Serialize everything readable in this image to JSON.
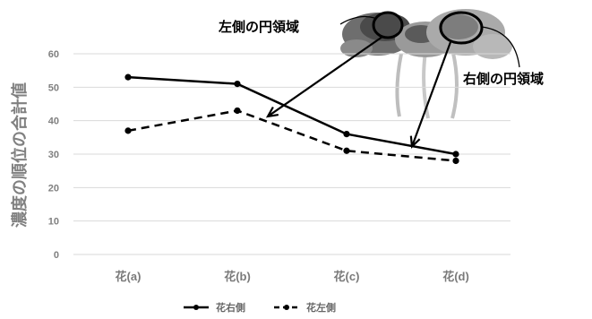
{
  "chart_data": {
    "type": "line",
    "categories": [
      "花(a)",
      "花(b)",
      "花(c)",
      "花(d)"
    ],
    "series": [
      {
        "name": "花右側",
        "values": [
          53,
          51,
          36,
          30
        ],
        "style": "solid",
        "color": "#000000"
      },
      {
        "name": "花左側",
        "values": [
          37,
          43,
          31,
          28
        ],
        "style": "dashed",
        "color": "#000000"
      }
    ],
    "ylabel": "濃度の順位の合計値",
    "ylim": [
      0,
      60
    ],
    "yticks": [
      0,
      10,
      20,
      30,
      40,
      50,
      60
    ],
    "grid": true,
    "legend_position": "bottom",
    "annotations": [
      {
        "text": "左側の円領域",
        "points_to": {
          "category": "花(b)",
          "value": 41
        }
      },
      {
        "text": "右側の円領域",
        "points_to": {
          "category": "花(d)",
          "value": 32
        }
      }
    ]
  },
  "colors": {
    "grid": "#d9d9d9",
    "axis_text": "#808080",
    "line": "#000000"
  }
}
